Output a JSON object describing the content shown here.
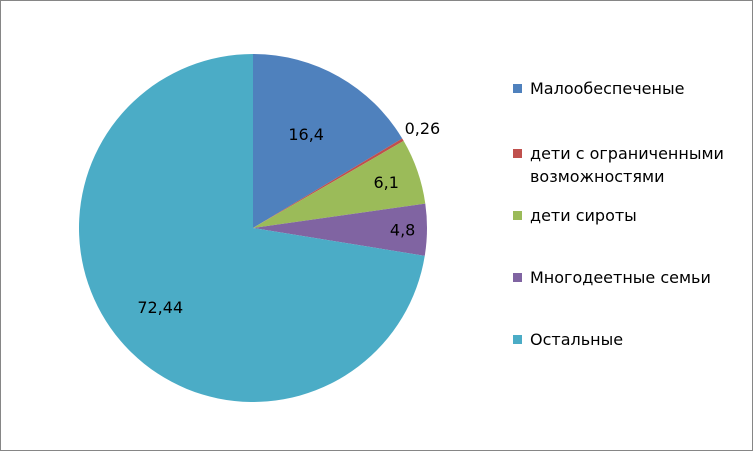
{
  "chart_data": {
    "type": "pie",
    "title": "",
    "slices": [
      {
        "label": "Малообеспеченые",
        "value": 16.4,
        "display": "16,4",
        "color": "#4F81BD"
      },
      {
        "label": "дети с ограниченными возможностями",
        "value": 0.26,
        "display": "0,26",
        "color": "#C0504D"
      },
      {
        "label": "дети сироты",
        "value": 6.1,
        "display": "6,1",
        "color": "#9BBB59"
      },
      {
        "label": "Многодеетные семьи",
        "value": 4.8,
        "display": "4,8",
        "color": "#8064A2"
      },
      {
        "label": "Остальные",
        "value": 72.44,
        "display": "72,44",
        "color": "#4BACC6"
      }
    ],
    "legend_position": "right",
    "start_angle": "12 o'clock",
    "direction": "clockwise"
  }
}
